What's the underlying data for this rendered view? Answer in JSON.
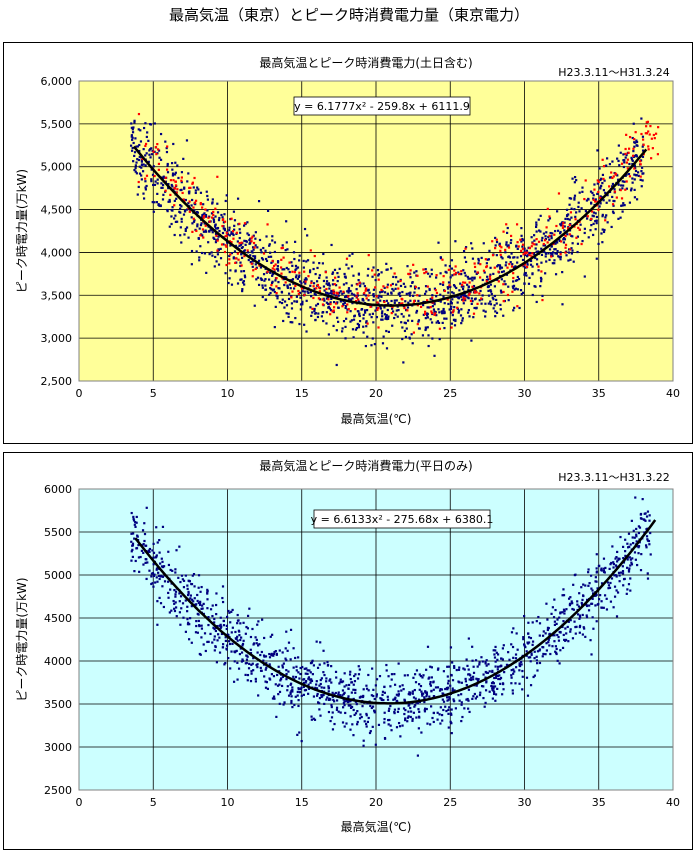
{
  "page_title": "最高気温（東京）とピーク時消費電力量（東京電力）",
  "chart_data": [
    {
      "type": "scatter",
      "title": "最高気温とピーク時消費電力(土日含む)",
      "period": "H23.3.11～H31.3.24",
      "xlabel": "最高気温(℃)",
      "ylabel": "ピーク時電力量(万kW)",
      "xlim": [
        0,
        40
      ],
      "ylim": [
        2500,
        6000
      ],
      "xticks": [
        "0",
        "5",
        "10",
        "15",
        "20",
        "25",
        "30",
        "35",
        "40"
      ],
      "yticks": [
        "2,500",
        "3,000",
        "3,500",
        "4,000",
        "4,500",
        "5,000",
        "5,500",
        "6,000"
      ],
      "grid": true,
      "background": "#ffff99",
      "series": [
        {
          "kind": "points",
          "color": "#000080",
          "n": 1700,
          "x_range": [
            3.5,
            38
          ],
          "spread": 230
        },
        {
          "kind": "points",
          "color": "#ff0000",
          "n": 480,
          "x_range": [
            4,
            39
          ],
          "spread": 190,
          "offset": 80
        }
      ],
      "trendline": {
        "a": 6.1777,
        "b": -259.8,
        "c": 6111.9,
        "x_range": [
          3.7,
          38.3
        ],
        "color": "#000000"
      },
      "equation": "y = 6.1777x² - 259.8x + 6111.9"
    },
    {
      "type": "scatter",
      "title": "最高気温とピーク時消費電力(平日のみ)",
      "period": "H23.3.11～H31.3.22",
      "xlabel": "最高気温(℃)",
      "ylabel": "ピーク時電力量(万kW)",
      "xlim": [
        0,
        40
      ],
      "ylim": [
        2500,
        6000
      ],
      "xticks": [
        "0",
        "5",
        "10",
        "15",
        "20",
        "25",
        "30",
        "35",
        "40"
      ],
      "yticks": [
        "2500",
        "3000",
        "3500",
        "4000",
        "4500",
        "5000",
        "5500",
        "6000"
      ],
      "grid": true,
      "background": "#ccffff",
      "series": [
        {
          "kind": "points",
          "color": "#000080",
          "n": 1500,
          "x_range": [
            3.5,
            38.5
          ],
          "spread": 210
        }
      ],
      "trendline": {
        "a": 6.6133,
        "b": -275.68,
        "c": 6380.1,
        "x_range": [
          3.8,
          39
        ],
        "color": "#000000"
      },
      "equation": "y = 6.6133x² - 275.68x + 6380.1"
    }
  ]
}
